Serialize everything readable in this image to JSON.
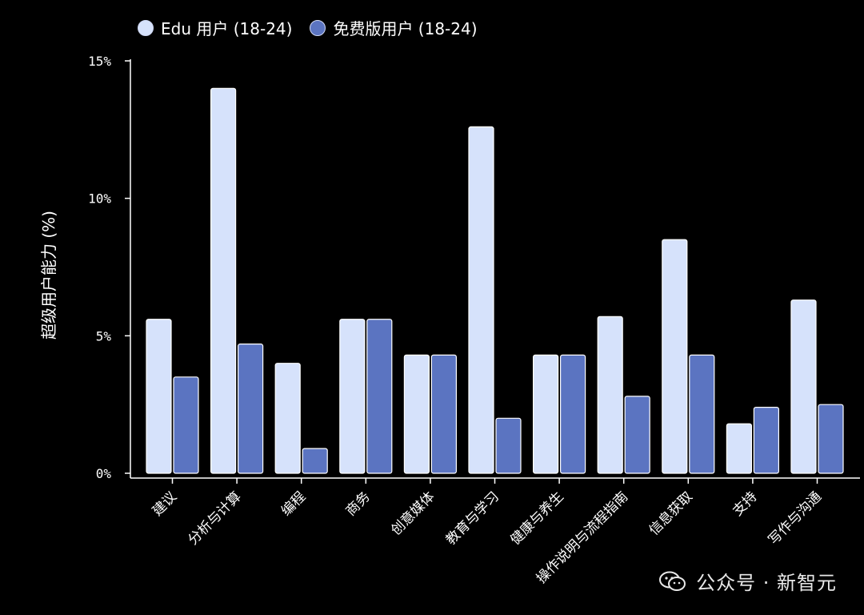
{
  "chart_data": {
    "type": "bar",
    "categories": [
      "建议",
      "分析与计算",
      "编程",
      "商务",
      "创意媒体",
      "教育与学习",
      "健康与养生",
      "操作说明与流程指南",
      "信息获取",
      "支持",
      "写作与沟通"
    ],
    "series": [
      {
        "name": "Edu 用户 (18-24)",
        "color": "#d6e2fb",
        "values": [
          5.6,
          14.0,
          4.0,
          5.6,
          4.3,
          12.6,
          4.3,
          5.7,
          8.5,
          1.8,
          6.3
        ]
      },
      {
        "name": "免费版用户 (18-24)",
        "color": "#5b74c1",
        "values": [
          3.5,
          4.7,
          0.9,
          5.6,
          4.3,
          2.0,
          4.3,
          2.8,
          4.3,
          2.4,
          2.5
        ]
      }
    ],
    "ylabel": "超级用户能力 (%)",
    "ylim": [
      0,
      15
    ],
    "yticks": [
      0,
      5,
      10,
      15
    ],
    "ytick_labels": [
      "0%",
      "5%",
      "10%",
      "15%"
    ],
    "grid": false,
    "legend_position": "top-left"
  },
  "watermark": {
    "text": "公众号 · 新智元",
    "logo_icon": "wechat-icon"
  }
}
